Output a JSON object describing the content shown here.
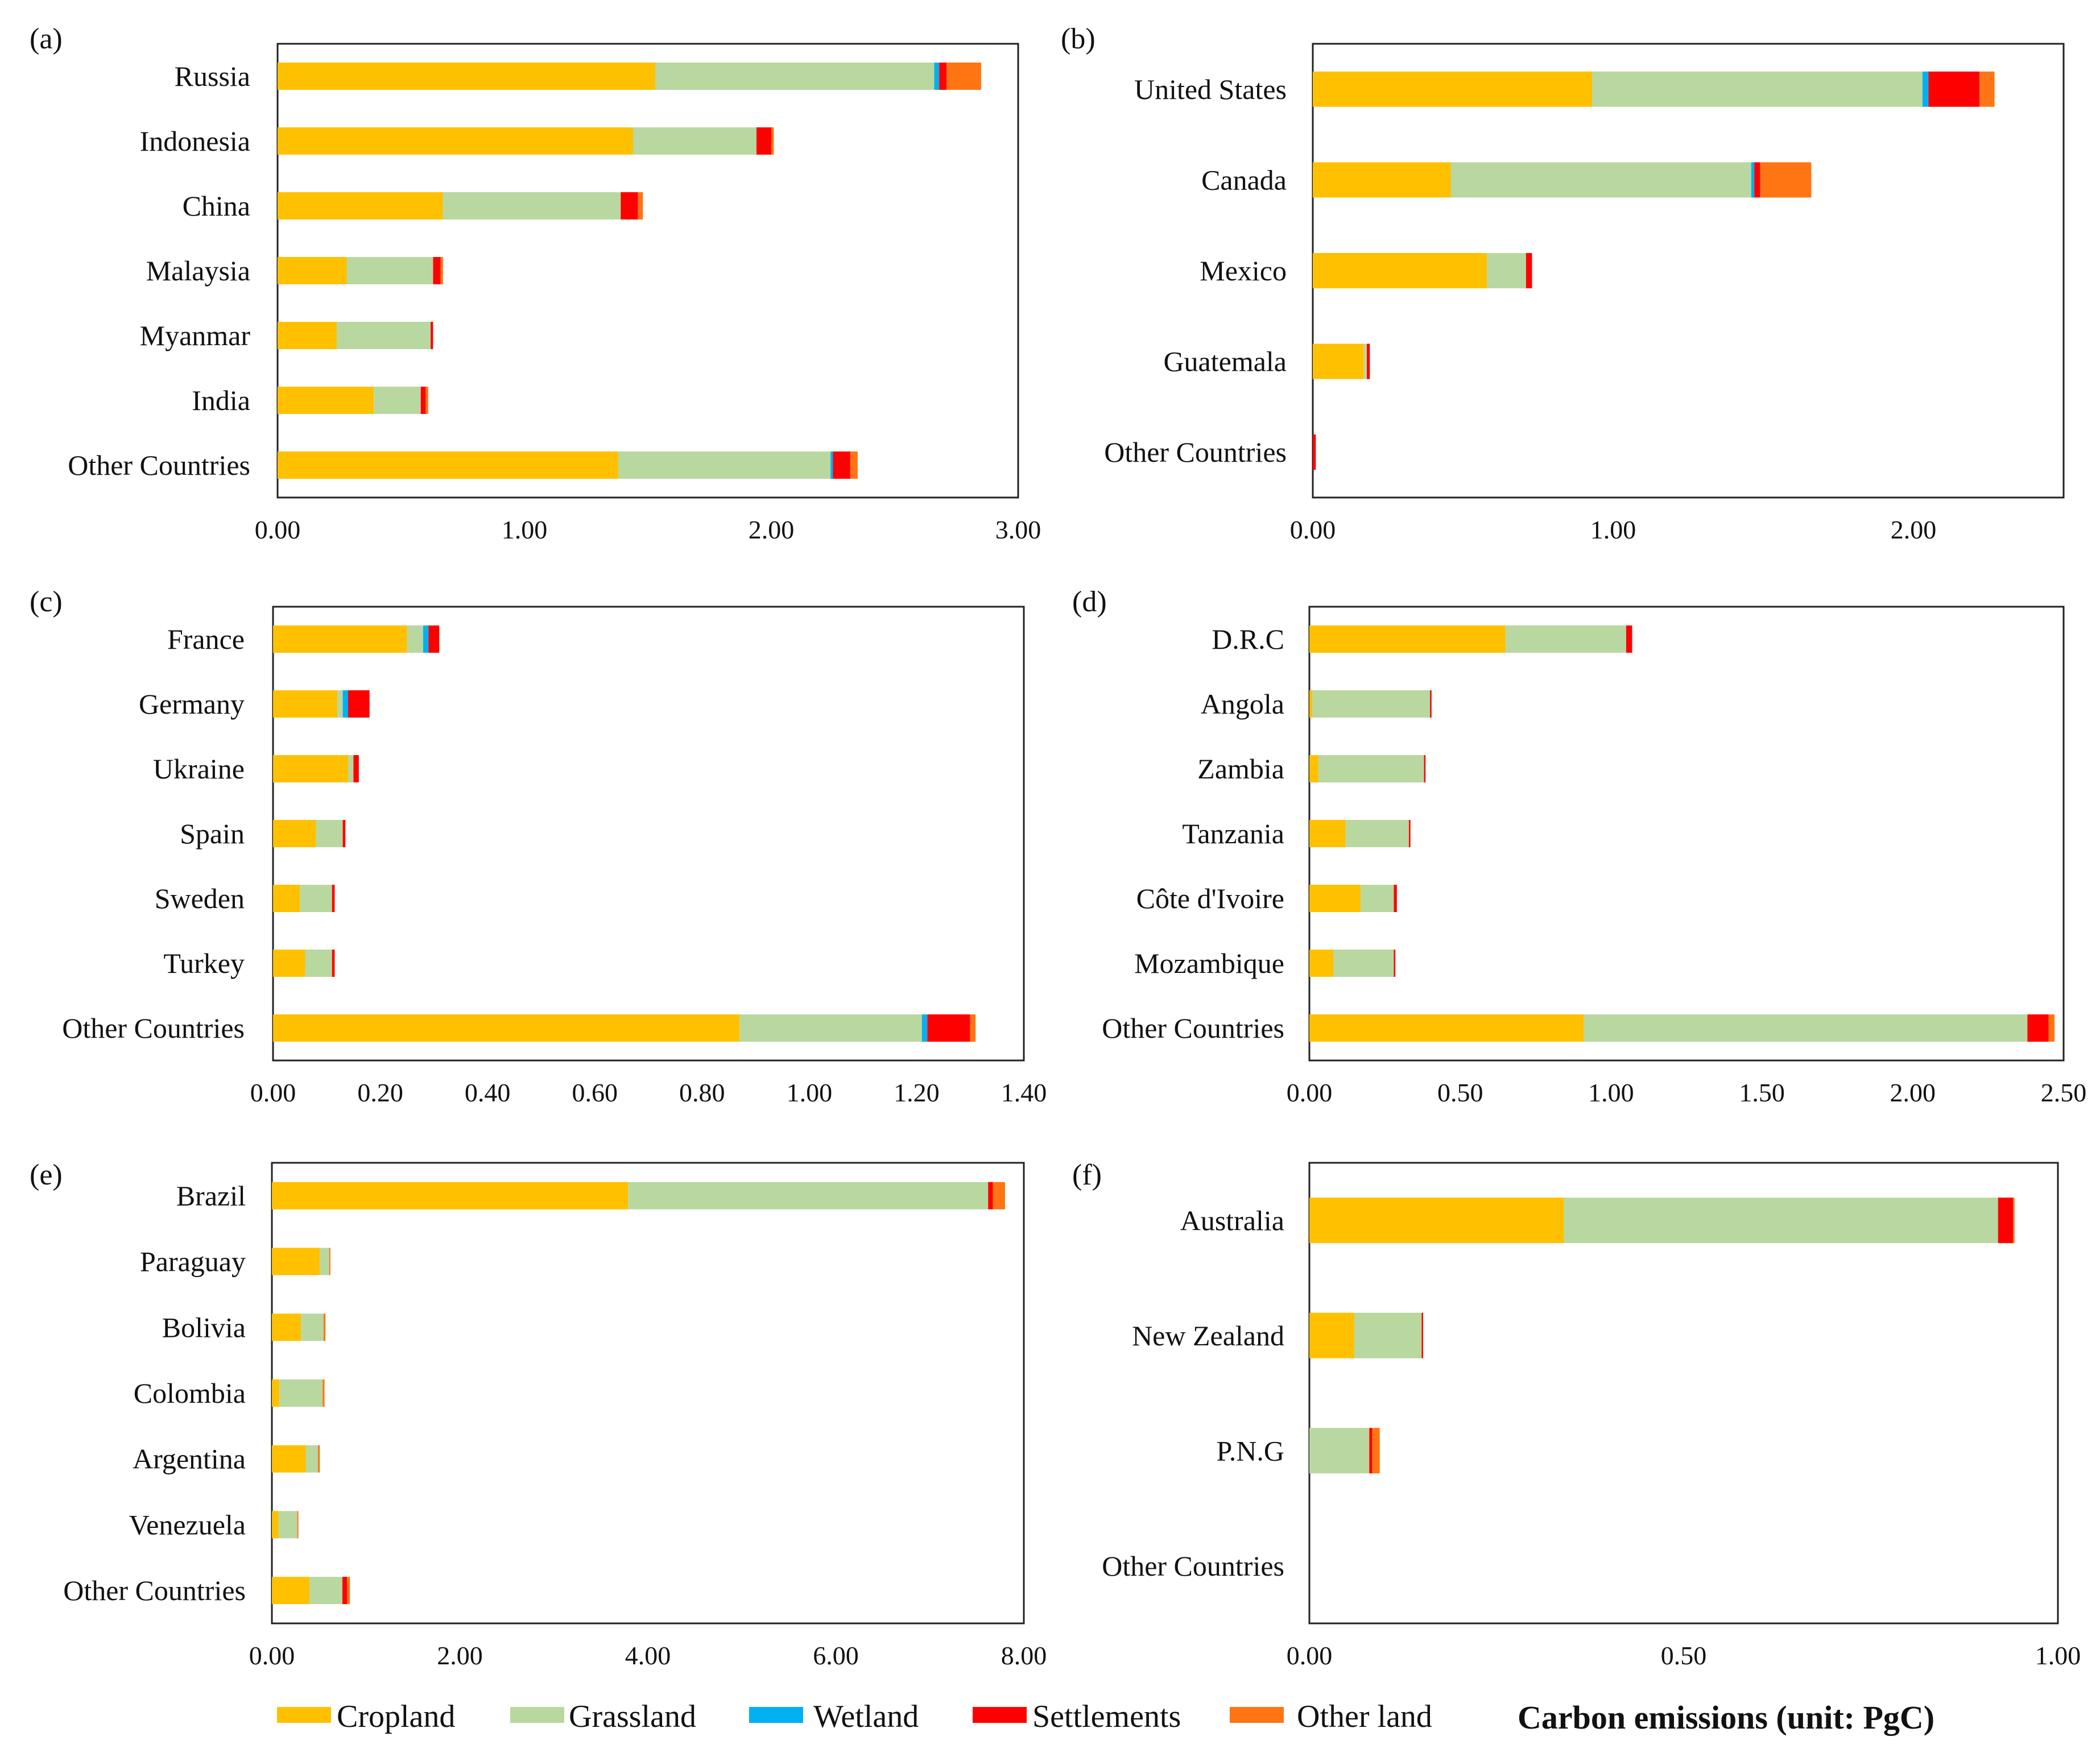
{
  "figure": {
    "legend": [
      {
        "name": "Cropland",
        "color": "#FFC000"
      },
      {
        "name": "Grassland",
        "color": "#B8D8A0"
      },
      {
        "name": "Wetland",
        "color": "#00B0F0"
      },
      {
        "name": "Settlements",
        "color": "#FF0000"
      },
      {
        "name": "Other land",
        "color": "#FF7514"
      }
    ],
    "unit_title": "Carbon emissions (unit: PgC)"
  },
  "chart_data": [
    {
      "type": "bar",
      "orientation": "horizontal",
      "stacked": true,
      "panel_label": "(a)",
      "categories": [
        "Russia",
        "Indonesia",
        "China",
        "Malaysia",
        "Myanmar",
        "India",
        "Other Countries"
      ],
      "xlim": [
        0,
        3
      ],
      "ticks": [
        0,
        1,
        2,
        3
      ],
      "tick_labels": [
        "0.00",
        "1.00",
        "2.00",
        "3.00"
      ],
      "series": [
        {
          "name": "Cropland",
          "values": [
            1.53,
            1.44,
            0.67,
            0.28,
            0.24,
            0.39,
            1.38
          ]
        },
        {
          "name": "Grassland",
          "values": [
            1.13,
            0.5,
            0.72,
            0.35,
            0.38,
            0.19,
            0.86
          ]
        },
        {
          "name": "Wetland",
          "values": [
            0.02,
            0.0,
            0.0,
            0.0,
            0.0,
            0.0,
            0.01
          ]
        },
        {
          "name": "Settlements",
          "values": [
            0.03,
            0.06,
            0.07,
            0.03,
            0.01,
            0.02,
            0.07
          ]
        },
        {
          "name": "Other land",
          "values": [
            0.14,
            0.01,
            0.02,
            0.01,
            0.0,
            0.01,
            0.03
          ]
        }
      ]
    },
    {
      "type": "bar",
      "orientation": "horizontal",
      "stacked": true,
      "panel_label": "(b)",
      "categories": [
        "United States",
        "Canada",
        "Mexico",
        "Guatemala",
        "Other Countries"
      ],
      "xlim": [
        0,
        2.5
      ],
      "ticks": [
        0,
        1,
        2
      ],
      "tick_labels": [
        "0.00",
        "1.00",
        "2.00"
      ],
      "series": [
        {
          "name": "Cropland",
          "values": [
            0.93,
            0.46,
            0.58,
            0.17,
            0.0
          ]
        },
        {
          "name": "Grassland",
          "values": [
            1.1,
            1.0,
            0.13,
            0.01,
            0.0
          ]
        },
        {
          "name": "Wetland",
          "values": [
            0.02,
            0.01,
            0.0,
            0.0,
            0.0
          ]
        },
        {
          "name": "Settlements",
          "values": [
            0.17,
            0.02,
            0.02,
            0.01,
            0.01
          ]
        },
        {
          "name": "Other land",
          "values": [
            0.05,
            0.17,
            0.0,
            0.0,
            0.0
          ]
        }
      ]
    },
    {
      "type": "bar",
      "orientation": "horizontal",
      "stacked": true,
      "panel_label": "(c)",
      "categories": [
        "France",
        "Germany",
        "Ukraine",
        "Spain",
        "Sweden",
        "Turkey",
        "Other Countries"
      ],
      "xlim": [
        0,
        1.4
      ],
      "ticks": [
        0,
        0.2,
        0.4,
        0.6,
        0.8,
        1.0,
        1.2,
        1.4
      ],
      "tick_labels": [
        "0.00",
        "0.20",
        "0.40",
        "0.60",
        "0.80",
        "1.00",
        "1.20",
        "1.40"
      ],
      "series": [
        {
          "name": "Cropland",
          "values": [
            0.25,
            0.12,
            0.14,
            0.08,
            0.05,
            0.06,
            0.87
          ]
        },
        {
          "name": "Grassland",
          "values": [
            0.03,
            0.01,
            0.01,
            0.05,
            0.06,
            0.05,
            0.34
          ]
        },
        {
          "name": "Wetland",
          "values": [
            0.01,
            0.01,
            0.0,
            0.0,
            0.0,
            0.0,
            0.01
          ]
        },
        {
          "name": "Settlements",
          "values": [
            0.02,
            0.04,
            0.01,
            0.005,
            0.005,
            0.005,
            0.08
          ]
        },
        {
          "name": "Other land",
          "values": [
            0.0,
            0.0,
            0.0,
            0.0,
            0.0,
            0.0,
            0.01
          ]
        }
      ]
    },
    {
      "type": "bar",
      "orientation": "horizontal",
      "stacked": true,
      "panel_label": "(d)",
      "categories": [
        "D.R.C",
        "Angola",
        "Zambia",
        "Tanzania",
        "Côte d'Ivoire",
        "Mozambique",
        "Other Countries"
      ],
      "xlim": [
        0,
        2.5
      ],
      "ticks": [
        0,
        0.5,
        1.0,
        1.5,
        2.0,
        2.5
      ],
      "tick_labels": [
        "0.00",
        "0.50",
        "1.00",
        "1.50",
        "2.00",
        "2.50"
      ],
      "series": [
        {
          "name": "Cropland",
          "values": [
            0.65,
            0.01,
            0.03,
            0.12,
            0.17,
            0.08,
            0.91
          ]
        },
        {
          "name": "Grassland",
          "values": [
            0.4,
            0.39,
            0.35,
            0.21,
            0.11,
            0.2,
            1.47
          ]
        },
        {
          "name": "Wetland",
          "values": [
            0.0,
            0.0,
            0.0,
            0.0,
            0.0,
            0.0,
            0.0
          ]
        },
        {
          "name": "Settlements",
          "values": [
            0.02,
            0.005,
            0.005,
            0.005,
            0.01,
            0.005,
            0.07
          ]
        },
        {
          "name": "Other land",
          "values": [
            0.0,
            0.0,
            0.0,
            0.0,
            0.0,
            0.0,
            0.02
          ]
        }
      ]
    },
    {
      "type": "bar",
      "orientation": "horizontal",
      "stacked": true,
      "panel_label": "(e)",
      "categories": [
        "Brazil",
        "Paraguay",
        "Bolivia",
        "Colombia",
        "Argentina",
        "Venezuela",
        "Other Countries"
      ],
      "xlim": [
        0,
        8
      ],
      "ticks": [
        0,
        2,
        4,
        6,
        8
      ],
      "tick_labels": [
        "0.00",
        "2.00",
        "4.00",
        "6.00",
        "8.00"
      ],
      "series": [
        {
          "name": "Cropland",
          "values": [
            3.79,
            0.51,
            0.31,
            0.08,
            0.36,
            0.07,
            0.4
          ]
        },
        {
          "name": "Grassland",
          "values": [
            3.83,
            0.1,
            0.24,
            0.46,
            0.13,
            0.2,
            0.35
          ]
        },
        {
          "name": "Wetland",
          "values": [
            0.0,
            0.0,
            0.0,
            0.0,
            0.0,
            0.0,
            0.0
          ]
        },
        {
          "name": "Settlements",
          "values": [
            0.05,
            0.0,
            0.0,
            0.0,
            0.0,
            0.0,
            0.05
          ]
        },
        {
          "name": "Other land",
          "values": [
            0.13,
            0.01,
            0.02,
            0.02,
            0.02,
            0.01,
            0.03
          ]
        }
      ]
    },
    {
      "type": "bar",
      "orientation": "horizontal",
      "stacked": true,
      "panel_label": "(f)",
      "categories": [
        "Australia",
        "New Zealand",
        "P.N.G",
        "Other Countries"
      ],
      "xlim": [
        0,
        1
      ],
      "ticks": [
        0,
        0.5,
        1.0
      ],
      "tick_labels": [
        "0.00",
        "0.50",
        "1.00"
      ],
      "series": [
        {
          "name": "Cropland",
          "values": [
            0.34,
            0.06,
            0.0,
            0.0
          ]
        },
        {
          "name": "Grassland",
          "values": [
            0.58,
            0.09,
            0.08,
            0.0
          ]
        },
        {
          "name": "Wetland",
          "values": [
            0.0,
            0.0,
            0.0,
            0.0
          ]
        },
        {
          "name": "Settlements",
          "values": [
            0.02,
            0.002,
            0.004,
            0.0
          ]
        },
        {
          "name": "Other land",
          "values": [
            0.002,
            0.0,
            0.01,
            0.0
          ]
        }
      ]
    }
  ]
}
